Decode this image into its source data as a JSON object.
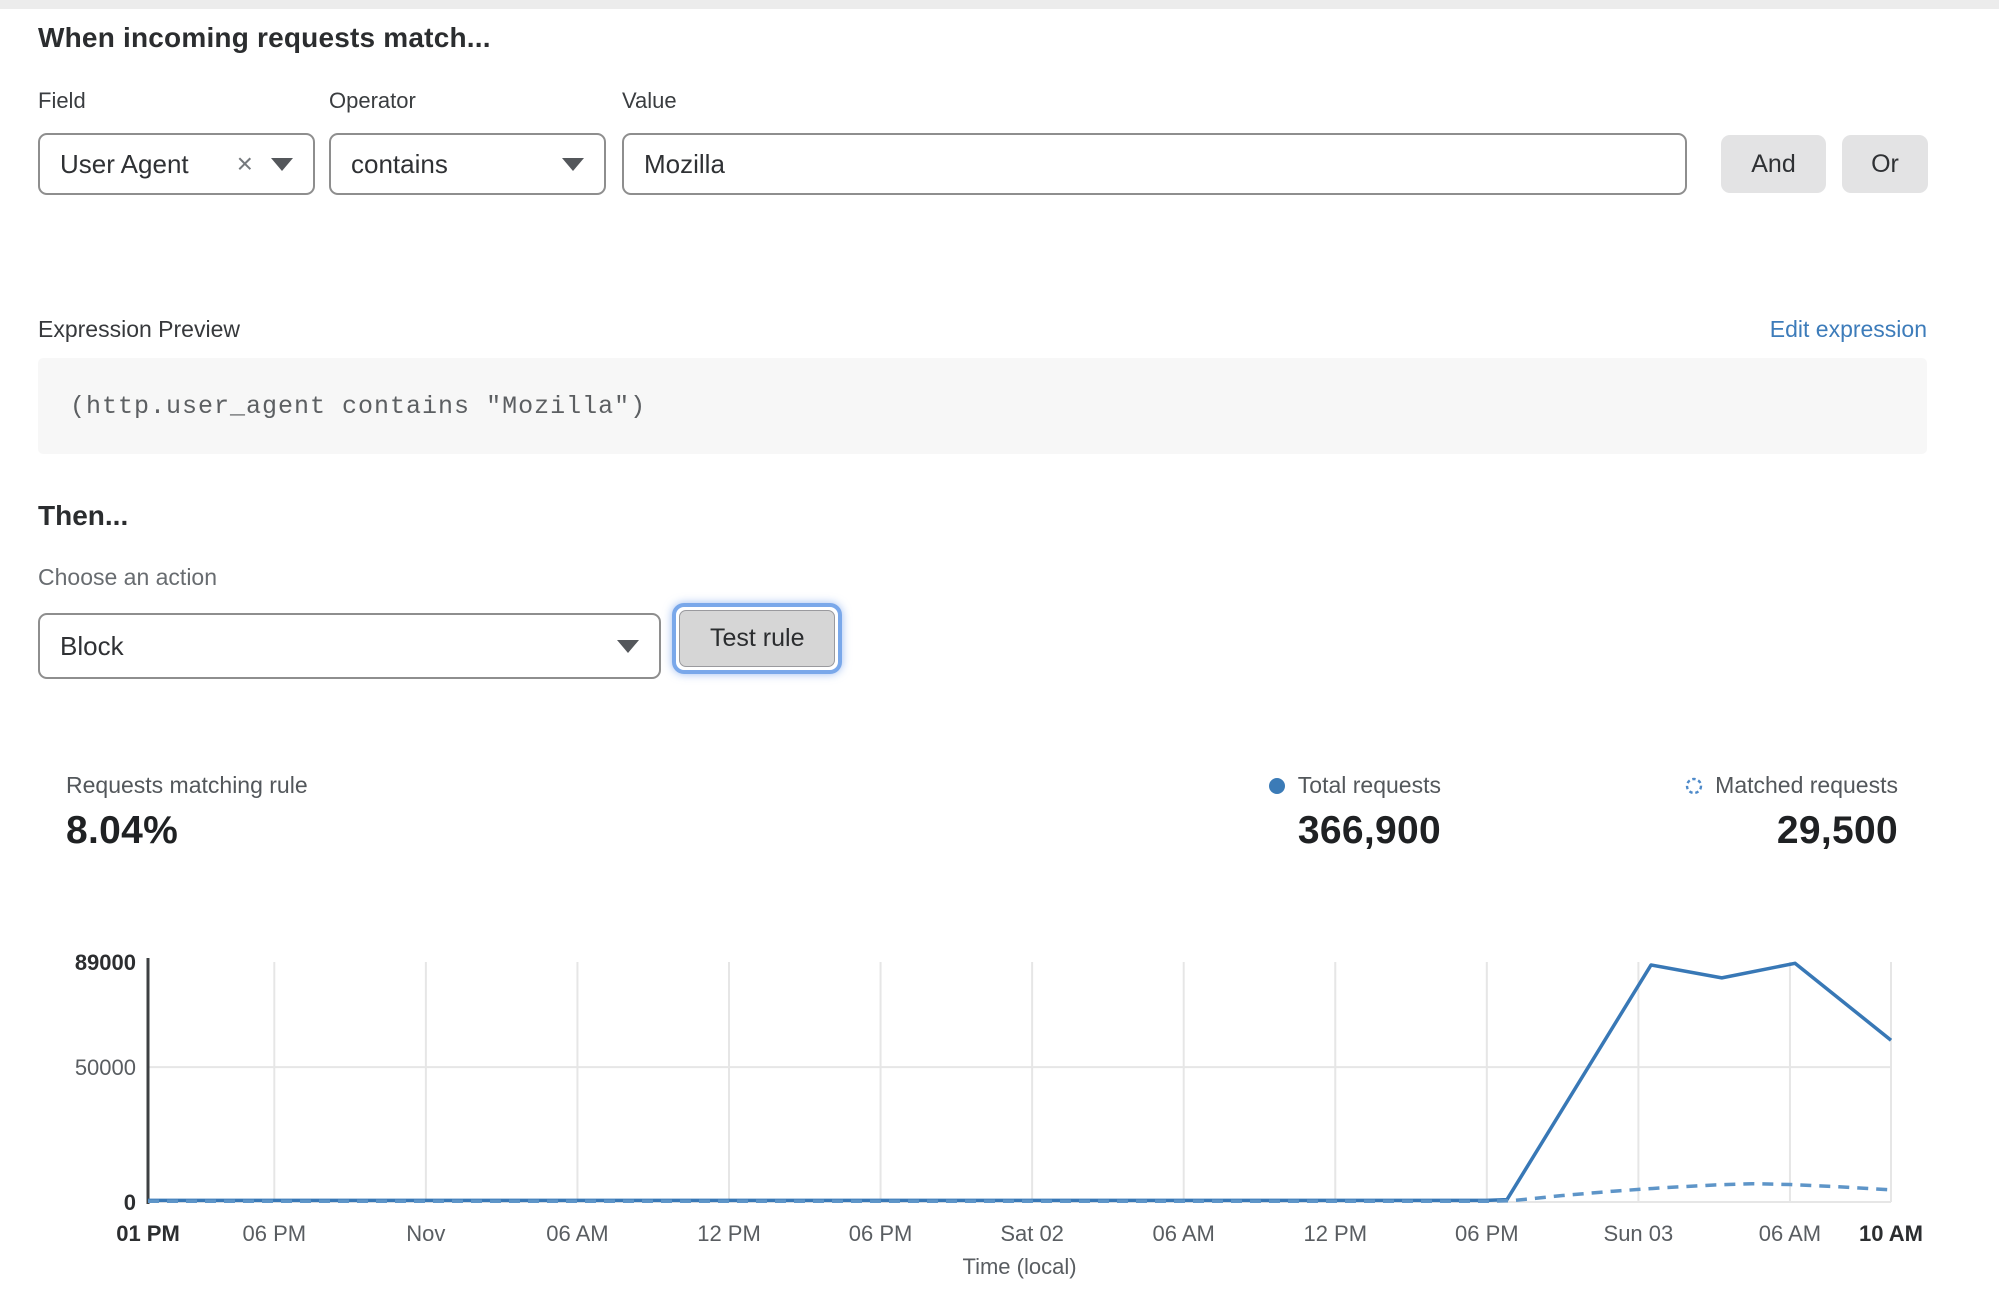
{
  "match_section": {
    "heading": "When incoming requests match...",
    "field_label": "Field",
    "operator_label": "Operator",
    "value_label": "Value",
    "field_value": "User Agent",
    "operator_value": "contains",
    "value_input": "Mozilla",
    "and_button": "And",
    "or_button": "Or"
  },
  "expression": {
    "label": "Expression Preview",
    "edit_link": "Edit expression",
    "code": "(http.user_agent contains \"Mozilla\")"
  },
  "action_section": {
    "heading": "Then...",
    "choose_label": "Choose an action",
    "action_value": "Block",
    "test_button": "Test rule"
  },
  "stats": {
    "matching": {
      "label": "Requests matching rule",
      "value": "8.04%"
    },
    "total": {
      "label": "Total requests",
      "value": "366,900"
    },
    "matched": {
      "label": "Matched requests",
      "value": "29,500"
    }
  },
  "colors": {
    "accent_blue": "#3878b6",
    "dashed_blue": "#5e95c8",
    "link_blue": "#3d7cba",
    "focus_ring": "#7aa8ea",
    "grid_gray": "#e6e6e6",
    "axis_dark": "#3e4042"
  },
  "chart_data": {
    "type": "line",
    "title": "",
    "xlabel": "Time (local)",
    "ylabel": "",
    "ylim": [
      0,
      89000
    ],
    "grid": true,
    "legend_position": "top-right",
    "x_total_hours": 69,
    "x_ticks": [
      {
        "label": "01 PM",
        "hour": 0,
        "bold": true
      },
      {
        "label": "06 PM",
        "hour": 5
      },
      {
        "label": "Nov",
        "hour": 11
      },
      {
        "label": "06 AM",
        "hour": 17
      },
      {
        "label": "12 PM",
        "hour": 23
      },
      {
        "label": "06 PM",
        "hour": 29
      },
      {
        "label": "Sat 02",
        "hour": 35
      },
      {
        "label": "06 AM",
        "hour": 41
      },
      {
        "label": "12 PM",
        "hour": 47
      },
      {
        "label": "06 PM",
        "hour": 53
      },
      {
        "label": "Sun 03",
        "hour": 59
      },
      {
        "label": "06 AM",
        "hour": 65
      },
      {
        "label": "10 AM",
        "hour": 69,
        "bold": true
      }
    ],
    "y_ticks": [
      {
        "label": "0",
        "value": 0,
        "bold": true
      },
      {
        "label": "50000",
        "value": 50000
      },
      {
        "label": "89000",
        "value": 89000,
        "bold": true
      }
    ],
    "series": [
      {
        "name": "Total requests",
        "line_style": "solid",
        "color": "#3878b6",
        "points": [
          [
            0,
            600
          ],
          [
            5,
            600
          ],
          [
            11,
            600
          ],
          [
            17,
            600
          ],
          [
            23,
            600
          ],
          [
            29,
            600
          ],
          [
            35,
            600
          ],
          [
            41,
            600
          ],
          [
            47,
            600
          ],
          [
            53,
            600
          ],
          [
            53.8,
            900
          ],
          [
            59.5,
            87900
          ],
          [
            62.3,
            83100
          ],
          [
            65.2,
            88500
          ],
          [
            69,
            60000
          ]
        ]
      },
      {
        "name": "Matched requests",
        "line_style": "dashed",
        "color": "#5e95c8",
        "points": [
          [
            0,
            250
          ],
          [
            5,
            250
          ],
          [
            11,
            250
          ],
          [
            17,
            250
          ],
          [
            23,
            250
          ],
          [
            29,
            250
          ],
          [
            35,
            250
          ],
          [
            41,
            250
          ],
          [
            47,
            250
          ],
          [
            53,
            250
          ],
          [
            54,
            500
          ],
          [
            56,
            2400
          ],
          [
            58,
            4000
          ],
          [
            60,
            5300
          ],
          [
            62,
            6300
          ],
          [
            63.5,
            6800
          ],
          [
            65,
            6500
          ],
          [
            67,
            5600
          ],
          [
            69,
            4500
          ]
        ]
      }
    ]
  }
}
